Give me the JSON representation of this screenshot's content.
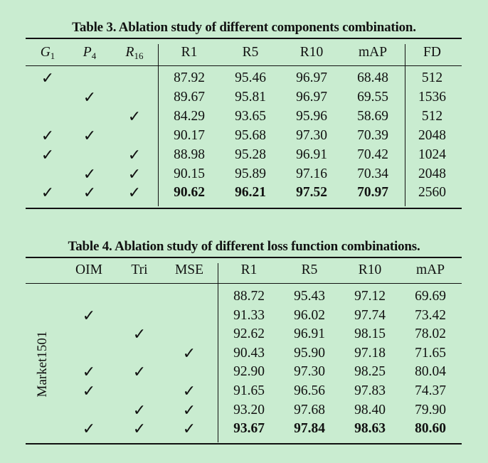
{
  "table3": {
    "caption": "Table 3. Ablation study of different components combination.",
    "headers": {
      "g": "G",
      "g_sub": "1",
      "p": "P",
      "p_sub": "4",
      "r": "R",
      "r_sub": "16",
      "r1": "R1",
      "r5": "R5",
      "r10": "R10",
      "map": "mAP",
      "fd": "FD"
    },
    "check_symbol": "✓",
    "rows": [
      {
        "g": true,
        "p": false,
        "r": false,
        "r1": "87.92",
        "r5": "95.46",
        "r10": "96.97",
        "map": "68.48",
        "fd": "512",
        "bold": false
      },
      {
        "g": false,
        "p": true,
        "r": false,
        "r1": "89.67",
        "r5": "95.81",
        "r10": "96.97",
        "map": "69.55",
        "fd": "1536",
        "bold": false
      },
      {
        "g": false,
        "p": false,
        "r": true,
        "r1": "84.29",
        "r5": "93.65",
        "r10": "95.96",
        "map": "58.69",
        "fd": "512",
        "bold": false
      },
      {
        "g": true,
        "p": true,
        "r": false,
        "r1": "90.17",
        "r5": "95.68",
        "r10": "97.30",
        "map": "70.39",
        "fd": "2048",
        "bold": false
      },
      {
        "g": true,
        "p": false,
        "r": true,
        "r1": "88.98",
        "r5": "95.28",
        "r10": "96.91",
        "map": "70.42",
        "fd": "1024",
        "bold": false
      },
      {
        "g": false,
        "p": true,
        "r": true,
        "r1": "90.15",
        "r5": "95.89",
        "r10": "97.16",
        "map": "70.34",
        "fd": "2048",
        "bold": false
      },
      {
        "g": true,
        "p": true,
        "r": true,
        "r1": "90.62",
        "r5": "96.21",
        "r10": "97.52",
        "map": "70.97",
        "fd": "2560",
        "bold": true
      }
    ]
  },
  "table4": {
    "caption": "Table 4. Ablation study of different loss function combinations.",
    "headers": {
      "oim": "OIM",
      "tri": "Tri",
      "mse": "MSE",
      "r1": "R1",
      "r5": "R5",
      "r10": "R10",
      "map": "mAP"
    },
    "dataset_label": "Market1501",
    "check_symbol": "✓",
    "rows": [
      {
        "oim": false,
        "tri": false,
        "mse": false,
        "r1": "88.72",
        "r5": "95.43",
        "r10": "97.12",
        "map": "69.69",
        "bold": false
      },
      {
        "oim": true,
        "tri": false,
        "mse": false,
        "r1": "91.33",
        "r5": "96.02",
        "r10": "97.74",
        "map": "73.42",
        "bold": false
      },
      {
        "oim": false,
        "tri": true,
        "mse": false,
        "r1": "92.62",
        "r5": "96.91",
        "r10": "98.15",
        "map": "78.02",
        "bold": false
      },
      {
        "oim": false,
        "tri": false,
        "mse": true,
        "r1": "90.43",
        "r5": "95.90",
        "r10": "97.18",
        "map": "71.65",
        "bold": false
      },
      {
        "oim": true,
        "tri": true,
        "mse": false,
        "r1": "92.90",
        "r5": "97.30",
        "r10": "98.25",
        "map": "80.04",
        "bold": false
      },
      {
        "oim": true,
        "tri": false,
        "mse": true,
        "r1": "91.65",
        "r5": "96.56",
        "r10": "97.83",
        "map": "74.37",
        "bold": false
      },
      {
        "oim": false,
        "tri": true,
        "mse": true,
        "r1": "93.20",
        "r5": "97.68",
        "r10": "98.40",
        "map": "79.90",
        "bold": false
      },
      {
        "oim": true,
        "tri": true,
        "mse": true,
        "r1": "93.67",
        "r5": "97.84",
        "r10": "98.63",
        "map": "80.60",
        "bold": true
      }
    ]
  }
}
